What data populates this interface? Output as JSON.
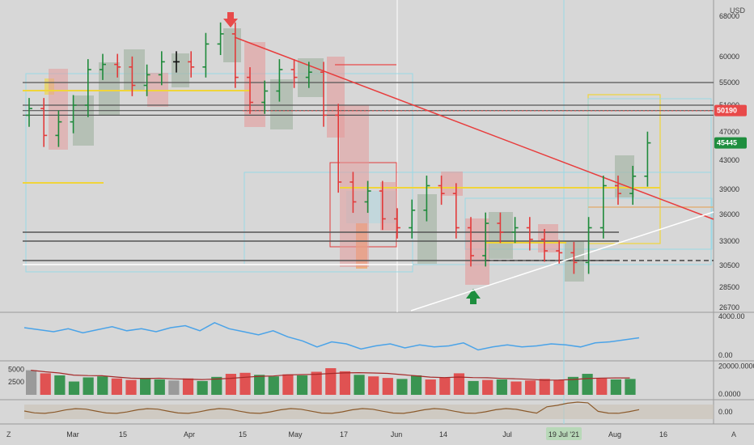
{
  "currency": "USD",
  "corner_left": "Z",
  "corner_right": "A",
  "price_axis": {
    "ticks": [
      "68000",
      "60000",
      "55000",
      "51000",
      "47000",
      "43000",
      "39000",
      "36000",
      "33000",
      "30500",
      "28500",
      "26700"
    ],
    "last_price": "45445",
    "marker_price": "50190"
  },
  "oscillator_axis": [
    "4000.00",
    "0.00"
  ],
  "volume_axis": {
    "left": [
      "5000",
      "2500"
    ],
    "right": [
      "20000.0000",
      "0.0000"
    ]
  },
  "momentum_axis": [
    "0.00"
  ],
  "time_axis": [
    "Mar",
    "15",
    "Apr",
    "15",
    "May",
    "17",
    "Jun",
    "14",
    "Jul",
    "19 Jul '21",
    "Aug",
    "16"
  ],
  "time_axis_highlight": "19 Jul '21",
  "colors": {
    "up_bar": "#1f8a3b",
    "down_bar": "#e23b3b",
    "neutral_bar": "#111111",
    "trend_line": "#e83c3c",
    "support_line": "#ffffff",
    "yellow_level": "#f0d43a",
    "cyan_box": "#9ad8e6",
    "osc_line": "#4aa3e8",
    "ma_line": "#a52a2a",
    "momentum_line": "#8b5a2b",
    "price_tag_red": "#e84a4a",
    "price_tag_green": "#1e8e3e"
  },
  "chart_data": [
    {
      "type": "ohlc",
      "pane": "price",
      "title": "",
      "x": [
        "Feb 22",
        "Feb 26",
        "Mar 1",
        "Mar 5",
        "Mar 9",
        "Mar 13",
        "Mar 17",
        "Mar 21",
        "Mar 25",
        "Mar 29",
        "Apr 2",
        "Apr 6",
        "Apr 10",
        "Apr 14",
        "Apr 18",
        "Apr 22",
        "Apr 26",
        "Apr 30",
        "May 4",
        "May 8",
        "May 12",
        "May 16",
        "May 20",
        "May 24",
        "May 28",
        "Jun 1",
        "Jun 5",
        "Jun 9",
        "Jun 13",
        "Jun 17",
        "Jun 21",
        "Jun 25",
        "Jun 29",
        "Jul 3",
        "Jul 7",
        "Jul 11",
        "Jul 15",
        "Jul 19",
        "Jul 23",
        "Jul 27",
        "Jul 31",
        "Aug 4",
        "Aug 8"
      ],
      "close": [
        50500,
        46500,
        48500,
        51000,
        57500,
        58500,
        58000,
        54500,
        56500,
        59000,
        59000,
        58000,
        62500,
        64500,
        56000,
        51500,
        53500,
        57500,
        56000,
        57000,
        49500,
        40000,
        37500,
        38800,
        35500,
        34500,
        36500,
        39500,
        38500,
        34500,
        31500,
        35000,
        34000,
        34500,
        33200,
        32000,
        31800,
        30800,
        34500,
        39500,
        38500,
        40800,
        45445
      ],
      "ylim": [
        26000,
        69000
      ],
      "levels": {
        "resistance": [
          55000,
          51000,
          50190,
          49500
        ],
        "support": [
          34000,
          33000,
          31000
        ]
      }
    },
    {
      "type": "line",
      "pane": "oscillator",
      "series": [
        {
          "values": [
            2800,
            2600,
            2400,
            2700,
            2300,
            2600,
            2900,
            2500,
            2700,
            2400,
            2800,
            3000,
            2500,
            3300,
            2700,
            2400,
            2100,
            2500,
            1900,
            1500,
            900,
            1400,
            1200,
            700,
            1000,
            1200,
            800,
            1100,
            900,
            1000,
            1300,
            600,
            900,
            1100,
            900,
            1000,
            1200,
            1100,
            900,
            1300,
            1400,
            1600,
            1800
          ]
        }
      ],
      "ylim": [
        0,
        4000
      ]
    },
    {
      "type": "bar",
      "pane": "volume",
      "values": [
        4800,
        4200,
        3800,
        2600,
        3400,
        3600,
        3200,
        2900,
        3300,
        3000,
        2800,
        3200,
        2700,
        3500,
        4100,
        4300,
        3900,
        3600,
        4000,
        3800,
        4500,
        5200,
        4600,
        3900,
        3600,
        3300,
        3100,
        3800,
        3000,
        3400,
        4200,
        2700,
        2900,
        3000,
        2600,
        2800,
        3100,
        2900,
        3500,
        4100,
        3200,
        3000,
        3100
      ],
      "ylim": [
        0,
        6000
      ]
    }
  ]
}
